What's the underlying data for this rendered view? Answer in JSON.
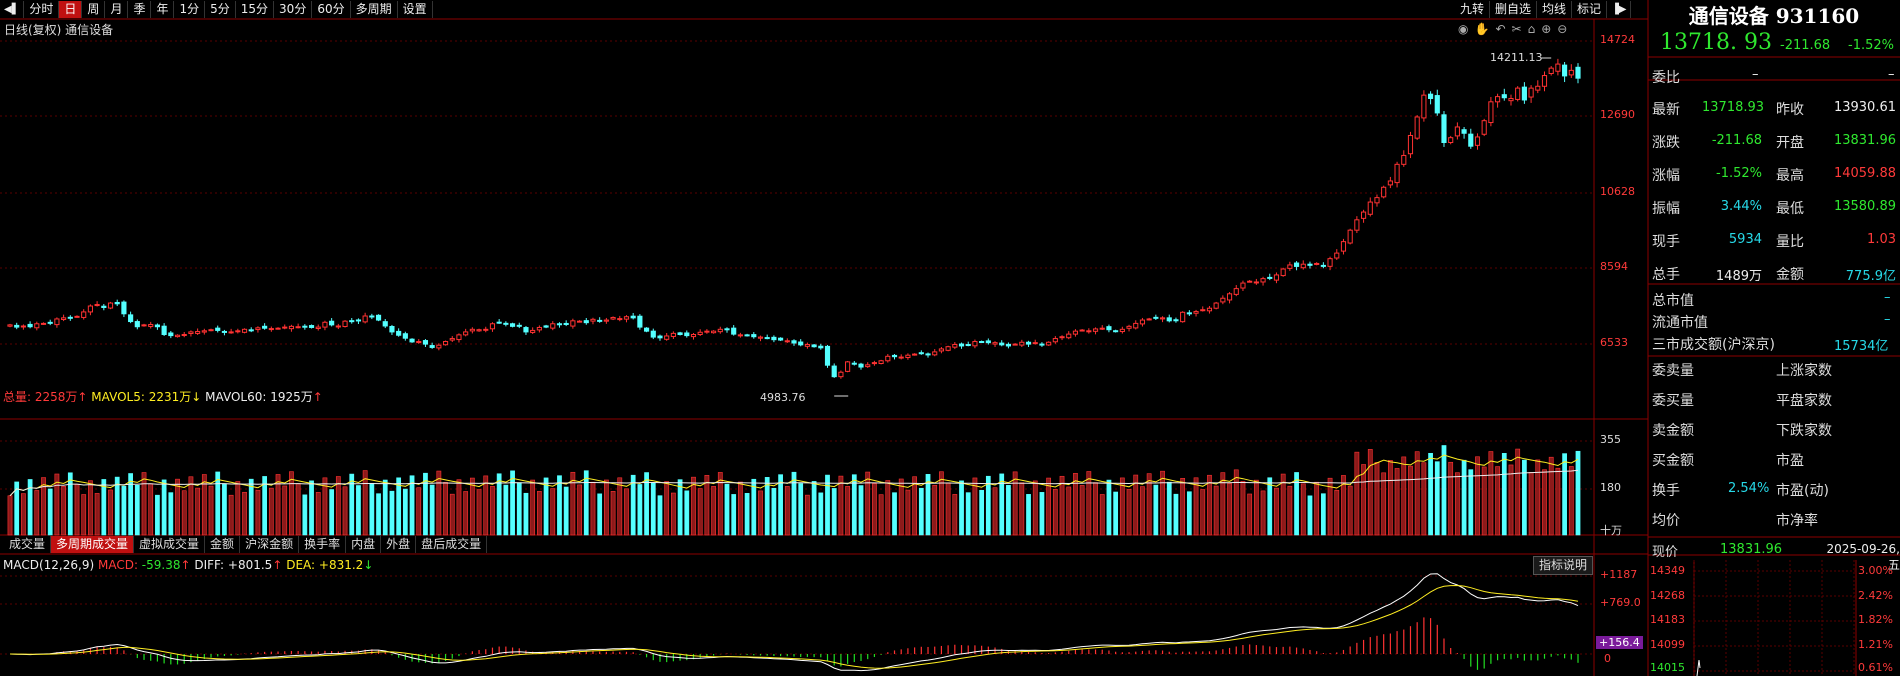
{
  "toolbar": {
    "periods": [
      "分时",
      "日",
      "周",
      "月",
      "季",
      "年",
      "1分",
      "5分",
      "15分",
      "30分",
      "60分",
      "多周期",
      "设置"
    ],
    "selected": "日",
    "right_items": [
      "九转",
      "删自选",
      "均线",
      "标记"
    ]
  },
  "chart_title": "日线(复权)  通信设备",
  "price_axis": [
    "14724",
    "12690",
    "10628",
    "8594",
    "6533"
  ],
  "high_label": "14211.13",
  "low_label": "4983.76",
  "volume": {
    "legend_total_label": "总量: ",
    "legend_total": "2258万",
    "legend_total_arrow": "↑",
    "mavol5_label": "MAVOL5: ",
    "mavol5": "2231万",
    "mavol5_arrow": "↓",
    "mavol60_label": "MAVOL60: ",
    "mavol60": "1925万",
    "mavol60_arrow": "↑",
    "axis": [
      "355",
      "180"
    ],
    "unit": "十万"
  },
  "tabs": [
    "成交量",
    "多周期成交量",
    "虚拟成交量",
    "金额",
    "沪深金额",
    "换手率",
    "内盘",
    "外盘",
    "盘后成交量"
  ],
  "tab_selected": "多周期成交量",
  "macd": {
    "name": "MACD(12,26,9)",
    "macd_label": "MACD: ",
    "macd": "-59.38",
    "macd_arrow": "↑",
    "diff_label": "DIFF: ",
    "diff": "+801.5",
    "diff_arrow": "↑",
    "dea_label": "DEA: ",
    "dea": "+831.2",
    "dea_arrow": "↓",
    "axis_top": "+1187",
    "axis_mid": "+769.0",
    "axis_tag": "+156.4",
    "axis_zero": "0",
    "help": "指标说明"
  },
  "panel": {
    "name": "通信设备 931160",
    "price": "13718. 93",
    "change": "-211.68",
    "pct": "-1.52%",
    "weibi_label": "委比",
    "weibi_val": "–",
    "weibi_val2": "–",
    "rows": [
      {
        "l1": "最新",
        "v1": "13718.93",
        "c1": "g",
        "l2": "昨收",
        "v2": "13930.61",
        "c2": "w"
      },
      {
        "l1": "涨跌",
        "v1": "-211.68",
        "c1": "g",
        "l2": "开盘",
        "v2": "13831.96",
        "c2": "g"
      },
      {
        "l1": "涨幅",
        "v1": "-1.52%",
        "c1": "g",
        "l2": "最高",
        "v2": "14059.88",
        "c2": "r"
      },
      {
        "l1": "振幅",
        "v1": "3.44%",
        "c1": "c",
        "l2": "最低",
        "v2": "13580.89",
        "c2": "g"
      },
      {
        "l1": "现手",
        "v1": "5934",
        "c1": "c",
        "l2": "量比",
        "v2": "1.03",
        "c2": "r"
      },
      {
        "l1": "总手",
        "v1": "1489万",
        "c1": "w",
        "l2": "金额",
        "v2": "775.9亿",
        "c2": "c"
      }
    ],
    "zsz": "总市值",
    "ltsz": "流通市值",
    "sanshi": "三市成交额(沪深京)",
    "sanshi_val": "15734亿",
    "dash": "–",
    "lower": [
      {
        "l1": "委卖量",
        "l2": "上涨家数"
      },
      {
        "l1": "委买量",
        "l2": "平盘家数"
      },
      {
        "l1": "卖金额",
        "l2": "下跌家数"
      },
      {
        "l1": "买金额",
        "l2": "市盈"
      },
      {
        "l1": "换手",
        "v1": "2.54%",
        "l2": "市盈(动)"
      },
      {
        "l1": "均价",
        "l2": "市净率"
      }
    ],
    "xianjia_label": "现价",
    "xianjia": "13831.96",
    "date": "2025-09-26,五",
    "mini_left": [
      "14349",
      "14268",
      "14183",
      "14099",
      "14015"
    ],
    "mini_right": [
      "3.00%",
      "2.42%",
      "1.82%",
      "1.21%",
      "0.61%"
    ]
  },
  "chart_data": {
    "type": "candlestick",
    "ylim": [
      4800,
      15000
    ],
    "close": [
      7050,
      6990,
      7020,
      7000,
      7080,
      7090,
      7100,
      7210,
      7240,
      7230,
      7280,
      7400,
      7560,
      7600,
      7520,
      7640,
      7620,
      7350,
      7140,
      7000,
      7050,
      7060,
      7000,
      6790,
      6760,
      6770,
      6790,
      6860,
      6870,
      6890,
      6920,
      6900,
      6850,
      6860,
      6890,
      6930,
      6910,
      6970,
      6960,
      6950,
      6960,
      6990,
      7010,
      7000,
      6990,
      6980,
      6990,
      7120,
      7050,
      7020,
      7150,
      7140,
      7160,
      7290,
      7280,
      7180,
      7020,
      6860,
      6770,
      6690,
      6590,
      6600,
      6530,
      6440,
      6500,
      6600,
      6680,
      6780,
      6860,
      6930,
      6920,
      6930,
      7080,
      7120,
      7080,
      7010,
      7020,
      6860,
      6900,
      6980,
      6990,
      7080,
      7060,
      7060,
      7160,
      7150,
      7110,
      7200,
      7150,
      7180,
      7250,
      7220,
      7270,
      7240,
      6990,
      6880,
      6720,
      6700,
      6750,
      6820,
      6790,
      6760,
      6790,
      6850,
      6880,
      6880,
      6930,
      6920,
      6800,
      6780,
      6760,
      6730,
      6720,
      6700,
      6650,
      6640,
      6620,
      6560,
      6510,
      6520,
      6460,
      6430,
      5960,
      5650,
      5770,
      6050,
      6000,
      5910,
      5970,
      6030,
      6080,
      6200,
      6190,
      6180,
      6230,
      6260,
      6290,
      6240,
      6320,
      6400,
      6460,
      6520,
      6480,
      6510,
      6600,
      6590,
      6570,
      6570,
      6510,
      6480,
      6530,
      6580,
      6530,
      6570,
      6520,
      6580,
      6680,
      6730,
      6800,
      6880,
      6910,
      6890,
      6940,
      6960,
      6920,
      6870,
      6930,
      7010,
      7090,
      7180,
      7210,
      7240,
      7240,
      7160,
      7180,
      7390,
      7350,
      7410,
      7460,
      7500,
      7640,
      7770,
      7890,
      8030,
      8180,
      8230,
      8210,
      8300,
      8310,
      8400,
      8560,
      8670,
      8630,
      8690,
      8660,
      8710,
      8650,
      8840,
      8990,
      9300,
      9610,
      9890,
      10100,
      10370,
      10490,
      10770,
      10940,
      11390,
      11630,
      12170,
      12670,
      13260,
      13170,
      12780,
      11980,
      12110,
      12400,
      12230,
      11880,
      12130,
      12570,
      13080,
      13220,
      13190,
      13170,
      13450,
      13130,
      13450,
      13500,
      13790,
      13990,
      14100,
      13780,
      13930,
      13719
    ],
    "high_marker": 14211.13,
    "low_marker": 4983.76
  }
}
